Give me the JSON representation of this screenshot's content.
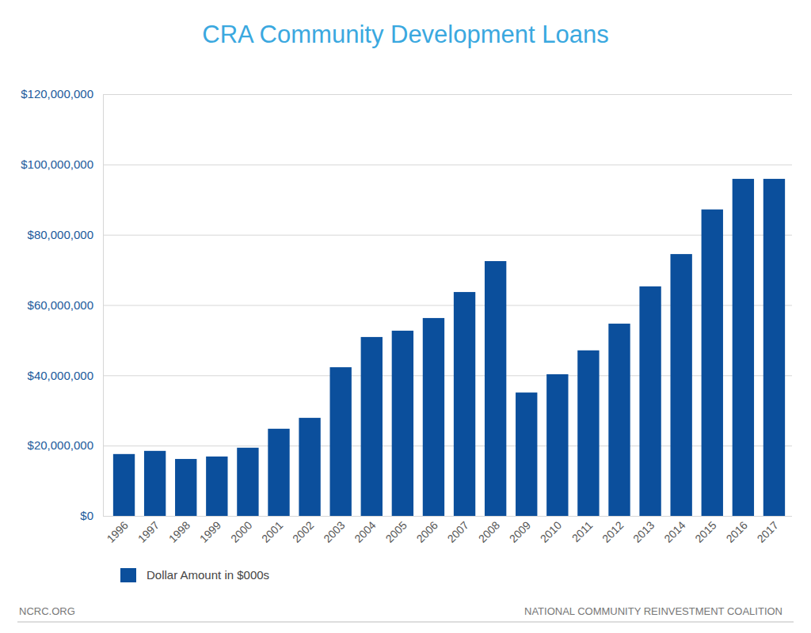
{
  "chart_data": {
    "type": "bar",
    "title": "CRA Community Development Loans",
    "categories": [
      "1996",
      "1997",
      "1998",
      "1999",
      "2000",
      "2001",
      "2002",
      "2003",
      "2004",
      "2005",
      "2006",
      "2007",
      "2008",
      "2009",
      "2010",
      "2011",
      "2012",
      "2013",
      "2014",
      "2015",
      "2016",
      "2017"
    ],
    "series": [
      {
        "name": "Dollar Amount in $000s",
        "color": "#0b4f9c",
        "values": [
          17600000,
          18500000,
          16200000,
          16900000,
          19400000,
          24800000,
          27900000,
          42300000,
          50900000,
          52700000,
          56300000,
          63700000,
          72500000,
          35100000,
          40300000,
          47100000,
          54700000,
          65300000,
          74500000,
          87200000,
          95900000,
          95900000
        ]
      }
    ],
    "ylim": [
      0,
      120000000
    ],
    "yticks": [
      {
        "value": 0,
        "label": "$0"
      },
      {
        "value": 20000000,
        "label": "$20,000,000"
      },
      {
        "value": 40000000,
        "label": "$40,000,000"
      },
      {
        "value": 60000000,
        "label": "$60,000,000"
      },
      {
        "value": 80000000,
        "label": "$80,000,000"
      },
      {
        "value": 100000000,
        "label": "$100,000,000"
      },
      {
        "value": 120000000,
        "label": "$120,000,000"
      }
    ],
    "grid": true,
    "legend": "bottom-left",
    "annotations": [
      "NCRC.ORG",
      "NATIONAL COMMUNITY REINVESTMENT COALITION"
    ]
  }
}
